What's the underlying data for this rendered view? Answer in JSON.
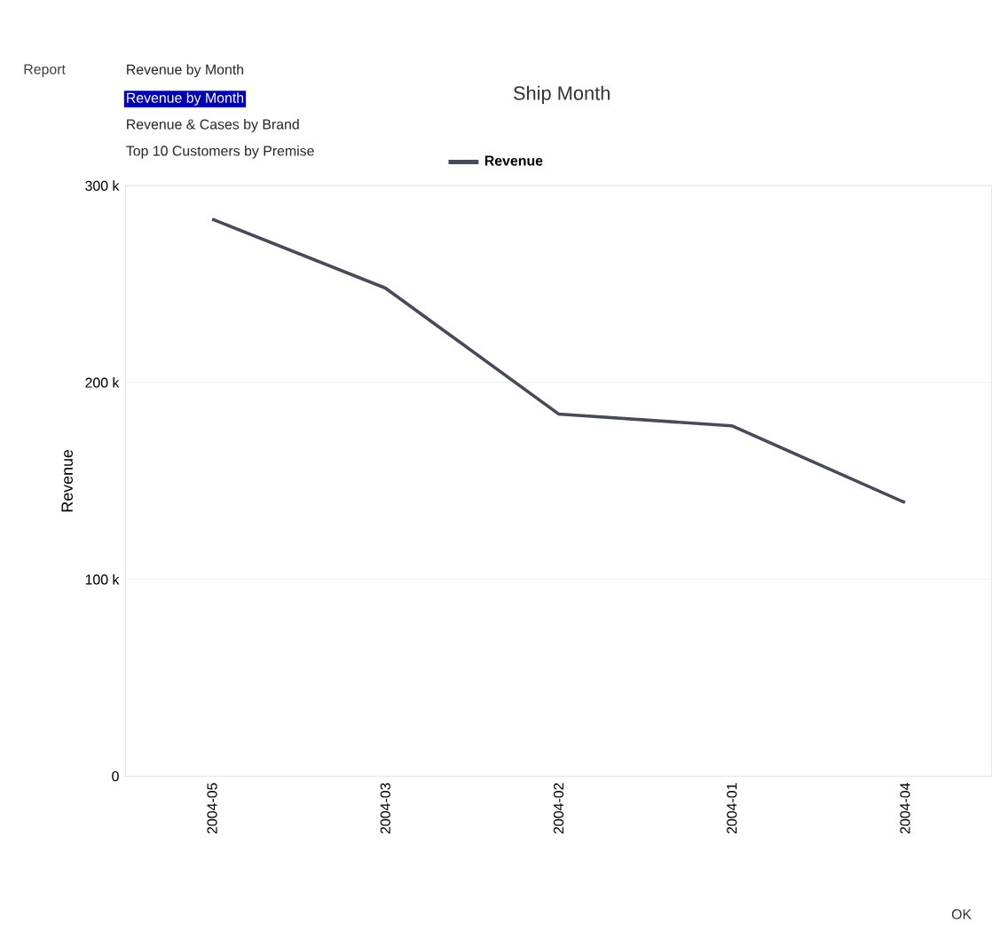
{
  "chart_data": {
    "type": "line",
    "title": "Ship Month",
    "ylabel": "Revenue",
    "categories": [
      "2004-05",
      "2004-03",
      "2004-02",
      "2004-01",
      "2004-04"
    ],
    "series": [
      {
        "name": "Revenue",
        "color": "#474b57",
        "values": [
          283000,
          248000,
          184000,
          178000,
          139000
        ]
      }
    ],
    "ylim": [
      0,
      300000
    ],
    "yticks": [
      {
        "value": 0,
        "label": "0"
      },
      {
        "value": 100000,
        "label": "100 k"
      },
      {
        "value": 200000,
        "label": "200 k"
      },
      {
        "value": 300000,
        "label": "300 k"
      }
    ],
    "grid": "y",
    "legend": "top",
    "marker": "none",
    "line_style": "solid",
    "annotations": [
      "Report",
      "Revenue by Month",
      "Revenue by Month",
      "Revenue & Cases by Brand",
      "Top 10 Customers by Premise",
      "OK"
    ]
  }
}
